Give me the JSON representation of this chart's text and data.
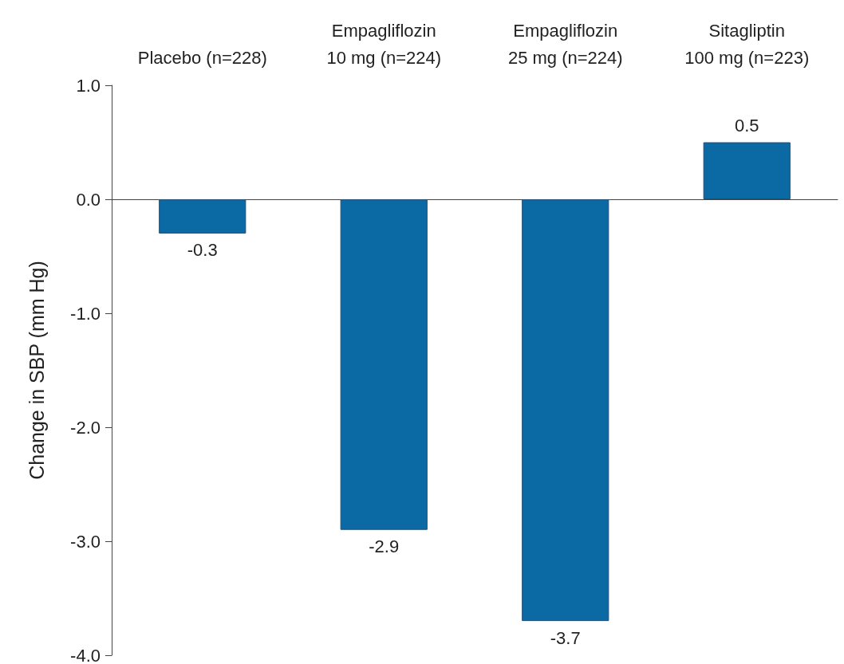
{
  "chart_data": {
    "type": "bar",
    "ylabel": "Change in SBP (mm Hg)",
    "categories": [
      "Placebo (n=228)",
      "Empagliflozin\n10 mg (n=224)",
      "Empagliflozin\n25 mg (n=224)",
      "Sitagliptin\n100 mg (n=223)"
    ],
    "values": [
      -0.3,
      -2.9,
      -3.7,
      0.5
    ],
    "color": "#0b69a3",
    "ylim": [
      -4,
      1
    ],
    "yticks": [
      {
        "value": -4,
        "label": "-4.0"
      },
      {
        "value": -3,
        "label": "-3.0"
      },
      {
        "value": -2,
        "label": "-2.0"
      },
      {
        "value": -1,
        "label": "-1.0"
      },
      {
        "value": 0,
        "label": "0.0"
      },
      {
        "value": 1,
        "label": "1.0"
      }
    ],
    "data_labels": true
  }
}
